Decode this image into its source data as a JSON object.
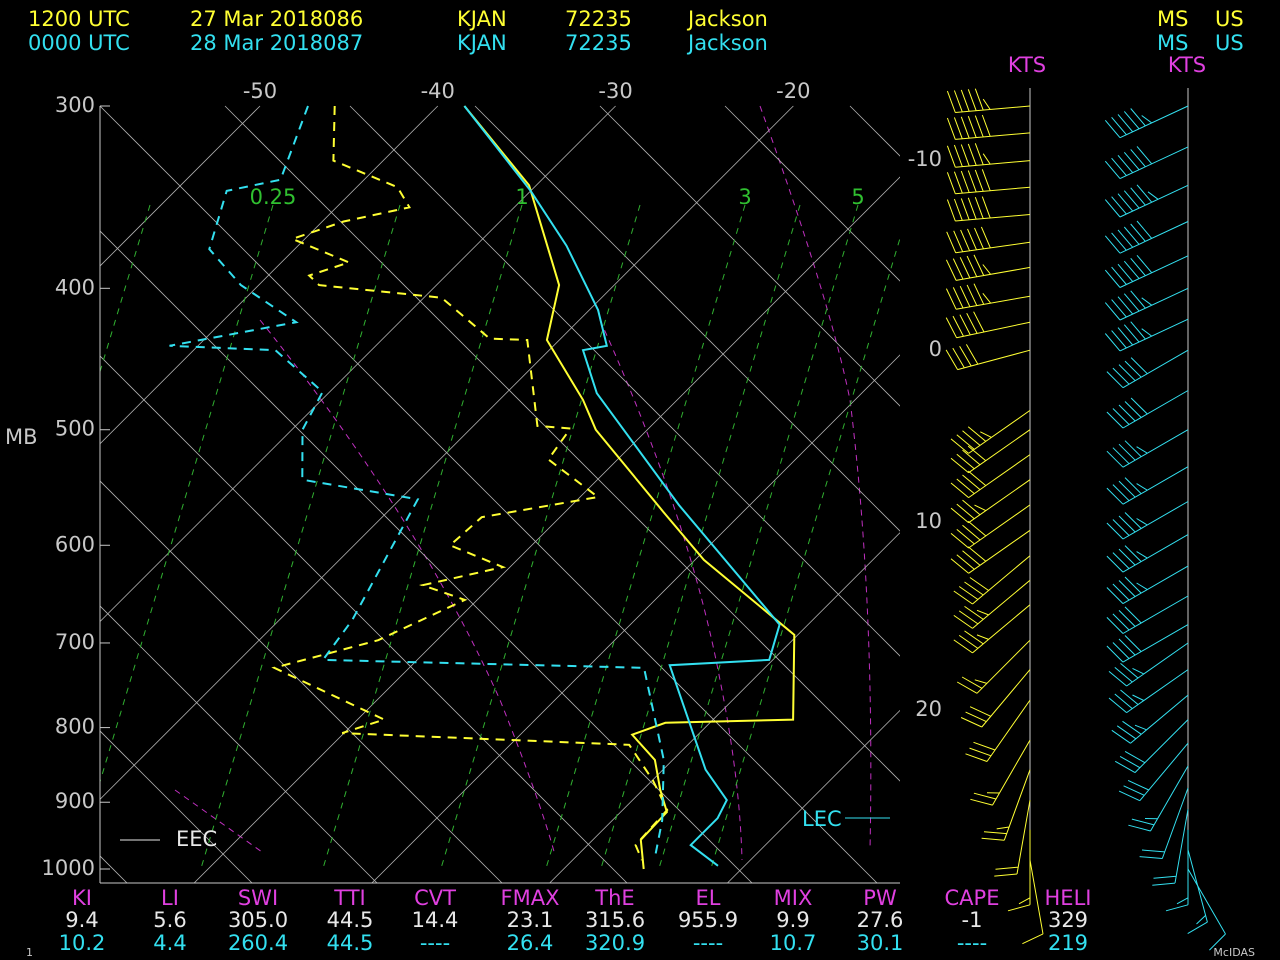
{
  "header": {
    "rows": [
      [
        "1200 UTC",
        "27 Mar 2018086",
        "KJAN",
        "72235",
        "Jackson",
        "MS",
        "US"
      ],
      [
        "0000 UTC",
        "28 Mar 2018087",
        "KJAN",
        "72235",
        "Jackson",
        "MS",
        "US"
      ]
    ]
  },
  "chart_data": {
    "type": "skewt",
    "ylabel": "MB",
    "ylim": [
      1000,
      300
    ],
    "yticks": [
      300,
      400,
      500,
      600,
      700,
      800,
      900,
      1000
    ],
    "xlim": [
      -59,
      -14
    ],
    "xticks": [
      -50,
      -40,
      -30,
      -20
    ],
    "mixing_ratio_labels": [
      0.25,
      1,
      3,
      5
    ],
    "series": [
      {
        "color": "#ffff33",
        "dashed": false,
        "p": [
          300,
          340,
          382,
          398,
          434,
          477,
          500,
          569,
          614,
          691,
          790,
          794,
          809,
          842,
          883,
          914,
          955,
          1000
        ],
        "t": [
          -38.5,
          -30.4,
          -25.0,
          -23.1,
          -20.7,
          -15.3,
          -12.9,
          -4.5,
          0.5,
          9.8,
          14.5,
          7.5,
          6.3,
          9.0,
          11.0,
          12.6,
          12.7,
          14.5
        ]
      },
      {
        "color": "#ffff33",
        "dashed": true,
        "p": [
          300,
          327,
          341,
          352,
          360,
          370,
          384,
          392,
          398,
          406,
          433,
          434,
          497,
          499,
          524,
          556,
          574,
          600,
          621,
          639,
          654,
          697,
          728,
          790,
          807,
          822,
          869,
          911,
          963,
          986
        ],
        "t": [
          -45.8,
          -42.8,
          -37.7,
          -35.9,
          -38.8,
          -40.7,
          -36.2,
          -37.7,
          -36.6,
          -29.0,
          -24.0,
          -21.8,
          -16.4,
          -14.4,
          -13.9,
          -9.0,
          -14.4,
          -14.6,
          -10.4,
          -13.9,
          -10.7,
          -13.3,
          -17.6,
          -8.5,
          -10.1,
          6.7,
          10.0,
          12.5,
          12.7,
          13.9
        ]
      },
      {
        "color": "#33e0f0",
        "dashed": false,
        "p": [
          300,
          343,
          374,
          414,
          438,
          441,
          472,
          563,
          680,
          719,
          725,
          855,
          897,
          923,
          963,
          995
        ],
        "t": [
          -38.5,
          -30.0,
          -24.9,
          -19.5,
          -17.0,
          -18.1,
          -14.9,
          -4.0,
          8.4,
          9.8,
          4.5,
          12.4,
          15.3,
          15.8,
          15.8,
          18.5
        ]
      },
      {
        "color": "#33e0f0",
        "dashed": true,
        "p": [
          300,
          337,
          343,
          376,
          398,
          422,
          438,
          441,
          471,
          500,
          541,
          558,
          675,
          719,
          728,
          842,
          926,
          986
        ],
        "t": [
          -47.3,
          -44.7,
          -47.1,
          -44.8,
          -41.0,
          -35.8,
          -41.6,
          -35.4,
          -30.4,
          -29.4,
          -26.6,
          -19.0,
          -15.9,
          -15.3,
          3.2,
          9.5,
          12.8,
          14.6
        ]
      }
    ],
    "wind_unit": "KTS",
    "wind_side_labels": [
      -10,
      0,
      10,
      20
    ],
    "winds": [
      {
        "color": "#ffff33",
        "p": [
          300,
          313,
          327,
          341,
          356,
          372,
          387,
          405,
          422,
          441,
          485,
          500,
          520,
          541,
          563,
          586,
          610,
          634,
          659,
          697,
          730,
          766,
          816,
          855,
          897,
          940,
          986
        ],
        "dir": [
          265,
          265,
          265,
          265,
          265,
          262,
          260,
          260,
          258,
          255,
          235,
          235,
          235,
          235,
          235,
          235,
          230,
          230,
          230,
          225,
          220,
          215,
          210,
          200,
          190,
          180,
          170
        ],
        "spd": [
          55,
          60,
          55,
          60,
          60,
          60,
          55,
          55,
          50,
          40,
          45,
          40,
          40,
          35,
          40,
          40,
          40,
          35,
          35,
          25,
          30,
          30,
          25,
          25,
          20,
          15,
          10
        ]
      },
      {
        "color": "#33e0f0",
        "p": [
          300,
          320,
          340,
          360,
          380,
          400,
          420,
          441,
          470,
          500,
          530,
          560,
          590,
          620,
          650,
          680,
          700,
          730,
          760,
          790,
          820,
          850,
          880,
          910,
          940,
          970,
          1000
        ],
        "dir": [
          245,
          245,
          245,
          245,
          245,
          245,
          245,
          240,
          240,
          240,
          240,
          240,
          240,
          240,
          240,
          240,
          235,
          235,
          230,
          225,
          220,
          210,
          200,
          190,
          180,
          165,
          150
        ],
        "spd": [
          55,
          60,
          65,
          60,
          60,
          55,
          55,
          50,
          50,
          45,
          45,
          45,
          45,
          45,
          40,
          40,
          35,
          35,
          35,
          30,
          30,
          25,
          20,
          20,
          15,
          15,
          10
        ]
      }
    ],
    "eec_label": "EEC",
    "lec_label": "LEC"
  },
  "indices": {
    "headers": [
      "KI",
      "LI",
      "SWI",
      "TTI",
      "CVT",
      "FMAX",
      "ThE",
      "EL",
      "MIX",
      "PW",
      "CAPE",
      "HELI"
    ],
    "rows": [
      [
        "9.4",
        "5.6",
        "305.0",
        "44.5",
        "14.4",
        "23.1",
        "315.6",
        "955.9",
        "9.9",
        "27.6",
        "-1",
        "329"
      ],
      [
        "10.2",
        "4.4",
        "260.4",
        "44.5",
        "----",
        "26.4",
        "320.9",
        "----",
        "10.7",
        "30.1",
        "----",
        "219"
      ]
    ]
  },
  "footer": {
    "page": "1",
    "brand": "McIDAS"
  }
}
